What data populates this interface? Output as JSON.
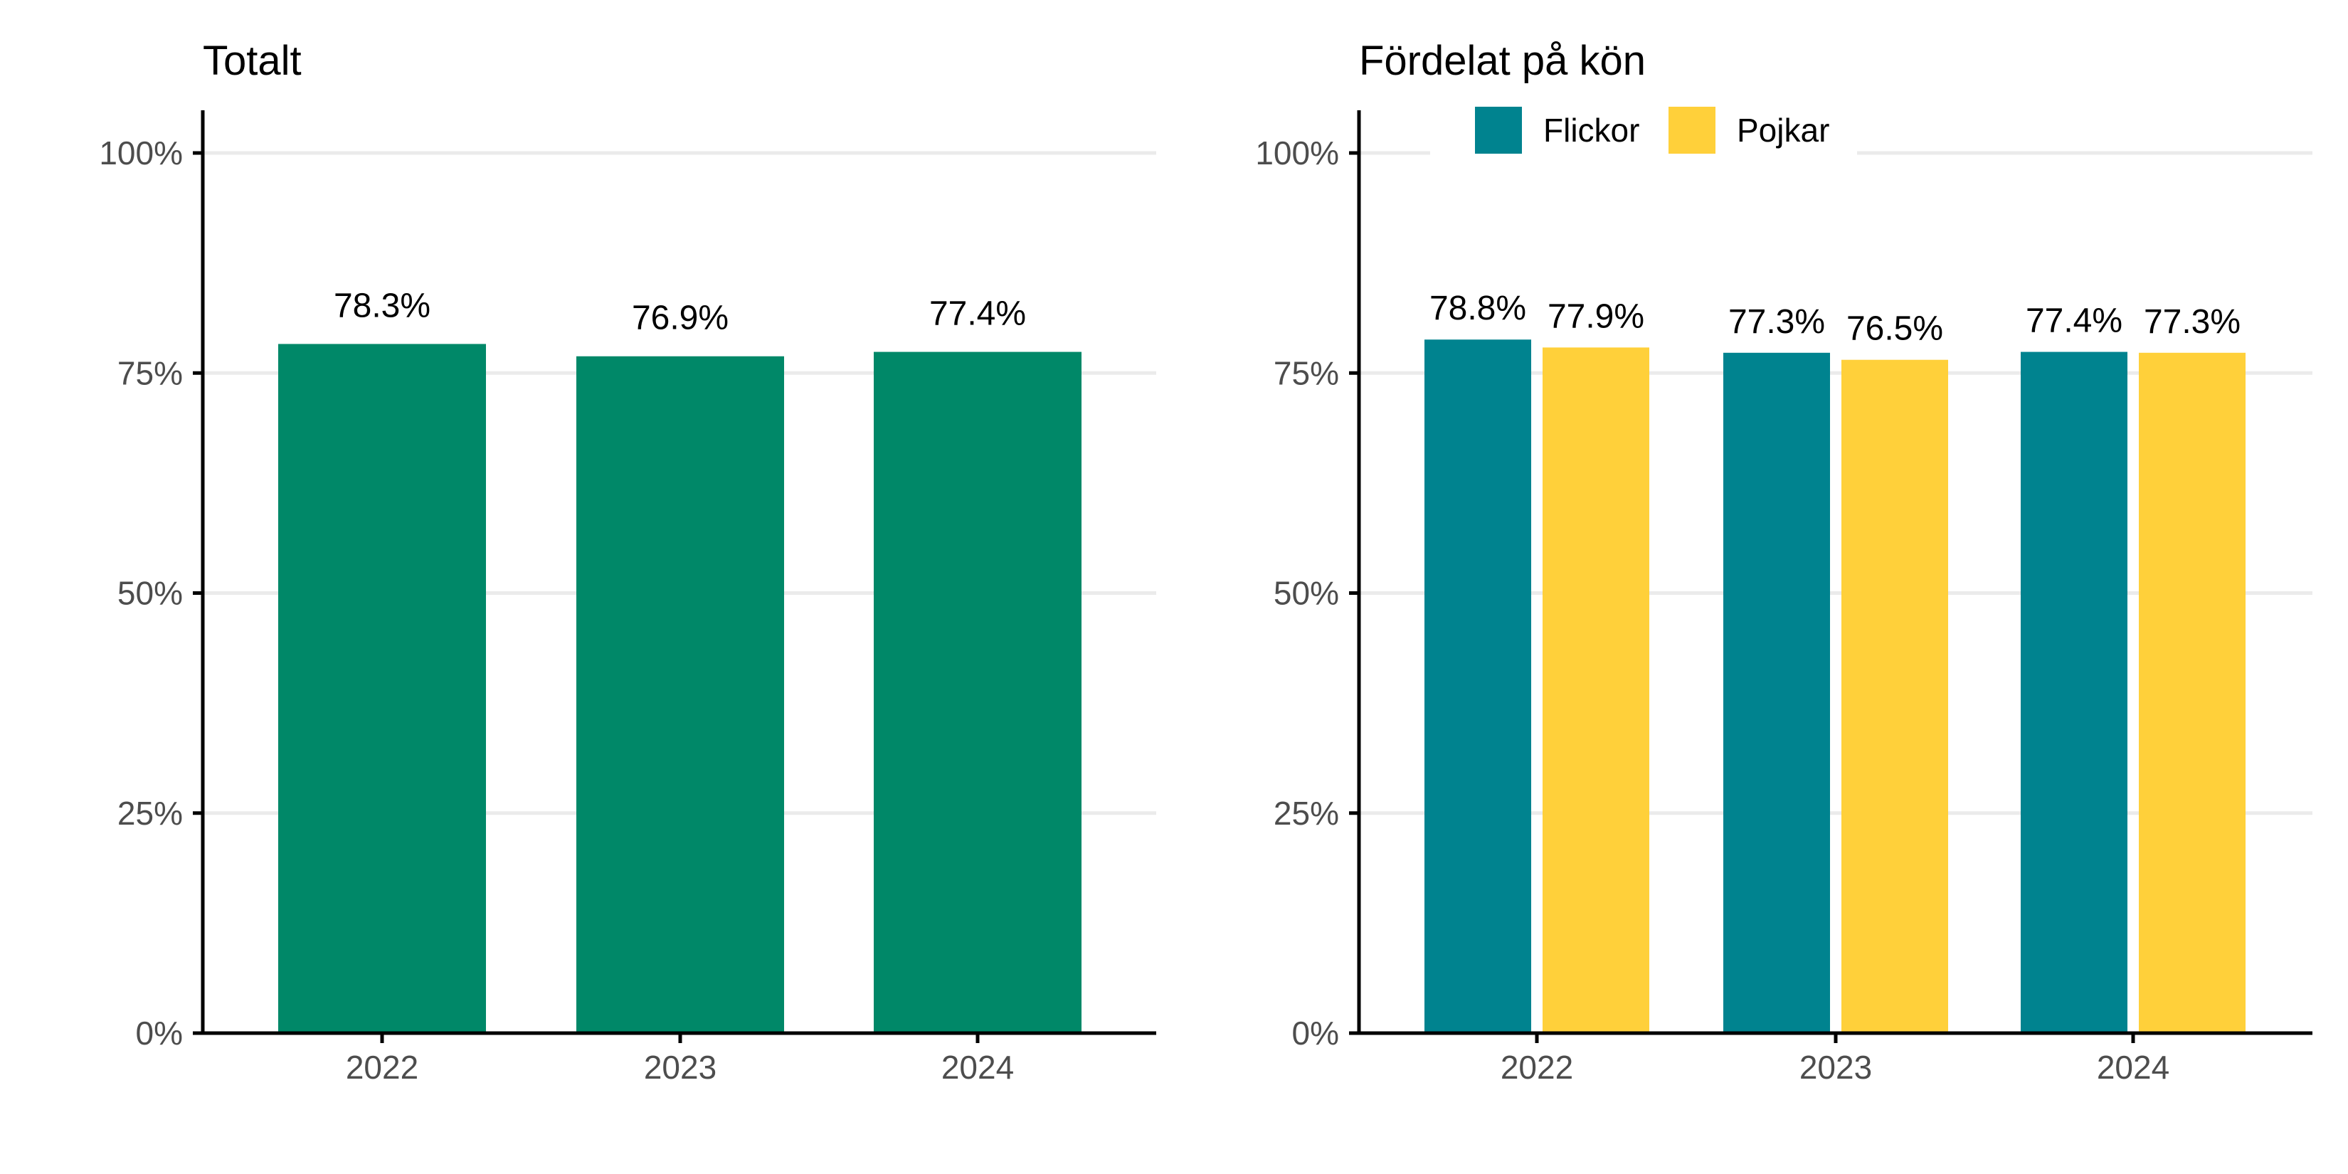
{
  "chart_data": [
    {
      "type": "bar",
      "title": "Totalt",
      "categories": [
        "2022",
        "2023",
        "2024"
      ],
      "values": [
        78.3,
        76.9,
        77.4
      ],
      "value_labels": [
        "78.3%",
        "76.9%",
        "77.4%"
      ],
      "ylim": [
        0,
        100
      ],
      "yticks": [
        0,
        25,
        50,
        75,
        100
      ],
      "ytick_labels": [
        "0%",
        "25%",
        "50%",
        "75%",
        "100%"
      ],
      "grid": true,
      "colors": [
        "#008868"
      ]
    },
    {
      "type": "bar",
      "title": "Fördelat på kön",
      "categories": [
        "2022",
        "2023",
        "2024"
      ],
      "series": [
        {
          "name": "Flickor",
          "color": "#00838F",
          "values": [
            78.8,
            77.3,
            77.4
          ],
          "value_labels": [
            "78.8%",
            "77.3%",
            "77.4%"
          ]
        },
        {
          "name": "Pojkar",
          "color": "#FFD03A",
          "values": [
            77.9,
            76.5,
            77.3
          ],
          "value_labels": [
            "77.9%",
            "76.5%",
            "77.3%"
          ]
        }
      ],
      "ylim": [
        0,
        100
      ],
      "yticks": [
        0,
        25,
        50,
        75,
        100
      ],
      "ytick_labels": [
        "0%",
        "25%",
        "50%",
        "75%",
        "100%"
      ],
      "grid": true,
      "legend_position": "top"
    }
  ]
}
